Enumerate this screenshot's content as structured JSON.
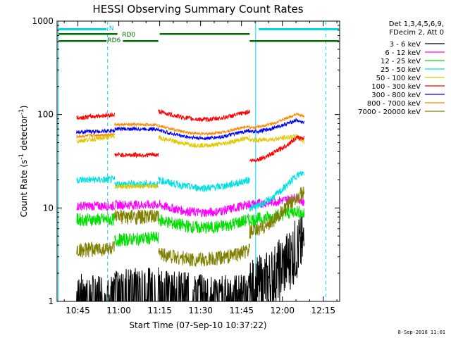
{
  "chart_data": {
    "type": "line",
    "title": "HESSI Observing Summary Count Rates",
    "xlabel": "Start Time (07-Sep-10 10:37:22)",
    "ylabel_main": "Count Rate (s",
    "ylabel_sup1": "-1",
    "ylabel_mid": " detector",
    "ylabel_sup2": "-1",
    "ylabel_end": ")",
    "yscale": "log",
    "ylim": [
      1,
      1000
    ],
    "xlim_minutes": [
      37.37,
      141.0
    ],
    "x_tick_minutes": [
      45,
      60,
      75,
      90,
      105,
      120,
      135
    ],
    "x_tick_labels": [
      "10:45",
      "11:00",
      "11:15",
      "11:30",
      "11:45",
      "12:00",
      "12:15"
    ],
    "y_tick_values": [
      1,
      10,
      100,
      1000
    ],
    "y_tick_labels": [
      "1",
      "10",
      "100",
      "1000"
    ],
    "legend_header": [
      "Det 1,3,4,5,6,9,",
      "FDecim 2, Att 0"
    ],
    "legend_position": "right",
    "date_stamp": "8-Sep-2010 11:01",
    "annotations": {
      "n_label": "N",
      "rd0_label": "RD0",
      "rd6_label": "RD6"
    },
    "segments_minutes": [
      {
        "name": "seg1",
        "start": 44.5,
        "end": 58.5
      },
      {
        "name": "seg2",
        "start": 58.5,
        "end": 74.5
      },
      {
        "name": "seg3",
        "start": 74.5,
        "end": 108.0
      },
      {
        "name": "seg4",
        "start": 108.0,
        "end": 128.0
      }
    ],
    "series": [
      {
        "name": "3 - 6 keV",
        "color": "#000000",
        "seg_values": [
          [
            1.2,
            1.1
          ],
          [
            1.5,
            1.5
          ],
          [
            1.6,
            1.2
          ],
          [
            1.3,
            4.8
          ]
        ],
        "noise": 0.35
      },
      {
        "name": "6 - 12 keV",
        "color": "#ff00ff",
        "seg_values": [
          [
            10.5,
            10.5
          ],
          [
            10.8,
            10.8
          ],
          [
            10.8,
            11.0
          ],
          [
            11.0,
            13.5
          ]
        ],
        "noise": 0.05
      },
      {
        "name": "12 - 25 keV",
        "color": "#00e000",
        "seg_values": [
          [
            7.5,
            7.5
          ],
          [
            4.5,
            4.8
          ],
          [
            7.5,
            7.5
          ],
          [
            7.5,
            10.0
          ]
        ],
        "noise": 0.07
      },
      {
        "name": "25 - 50 keV",
        "color": "#00e0e0",
        "seg_values": [
          [
            20,
            20
          ],
          [
            18,
            18
          ],
          [
            20,
            20
          ],
          [
            10,
            28
          ]
        ],
        "noise": 0.04
      },
      {
        "name": "50 - 100 keV",
        "color": "#e0c800",
        "seg_values": [
          [
            52,
            58
          ],
          [
            17,
            17
          ],
          [
            57,
            57
          ],
          [
            53,
            60
          ]
        ],
        "noise": 0.025
      },
      {
        "name": "100 - 300 keV",
        "color": "#ff0000",
        "seg_values": [
          [
            92,
            100
          ],
          [
            37,
            37
          ],
          [
            108,
            108
          ],
          [
            32,
            66
          ]
        ],
        "noise": 0.025
      },
      {
        "name": "300 - 800 keV",
        "color": "#0000ee",
        "seg_values": [
          [
            65,
            67
          ],
          [
            70,
            70
          ],
          [
            68,
            68
          ],
          [
            65,
            95
          ]
        ],
        "noise": 0.02
      },
      {
        "name": "800 - 7000 keV",
        "color": "#ff8800",
        "seg_values": [
          [
            58,
            62
          ],
          [
            78,
            78
          ],
          [
            76,
            76
          ],
          [
            72,
            112
          ]
        ],
        "noise": 0.015
      },
      {
        "name": "7000 - 20000 keV",
        "color": "#808000",
        "seg_values": [
          [
            3.5,
            3.7
          ],
          [
            8.0,
            8.0
          ],
          [
            3.3,
            3.5
          ],
          [
            5.5,
            17.0
          ]
        ],
        "noise": 0.08
      }
    ]
  }
}
